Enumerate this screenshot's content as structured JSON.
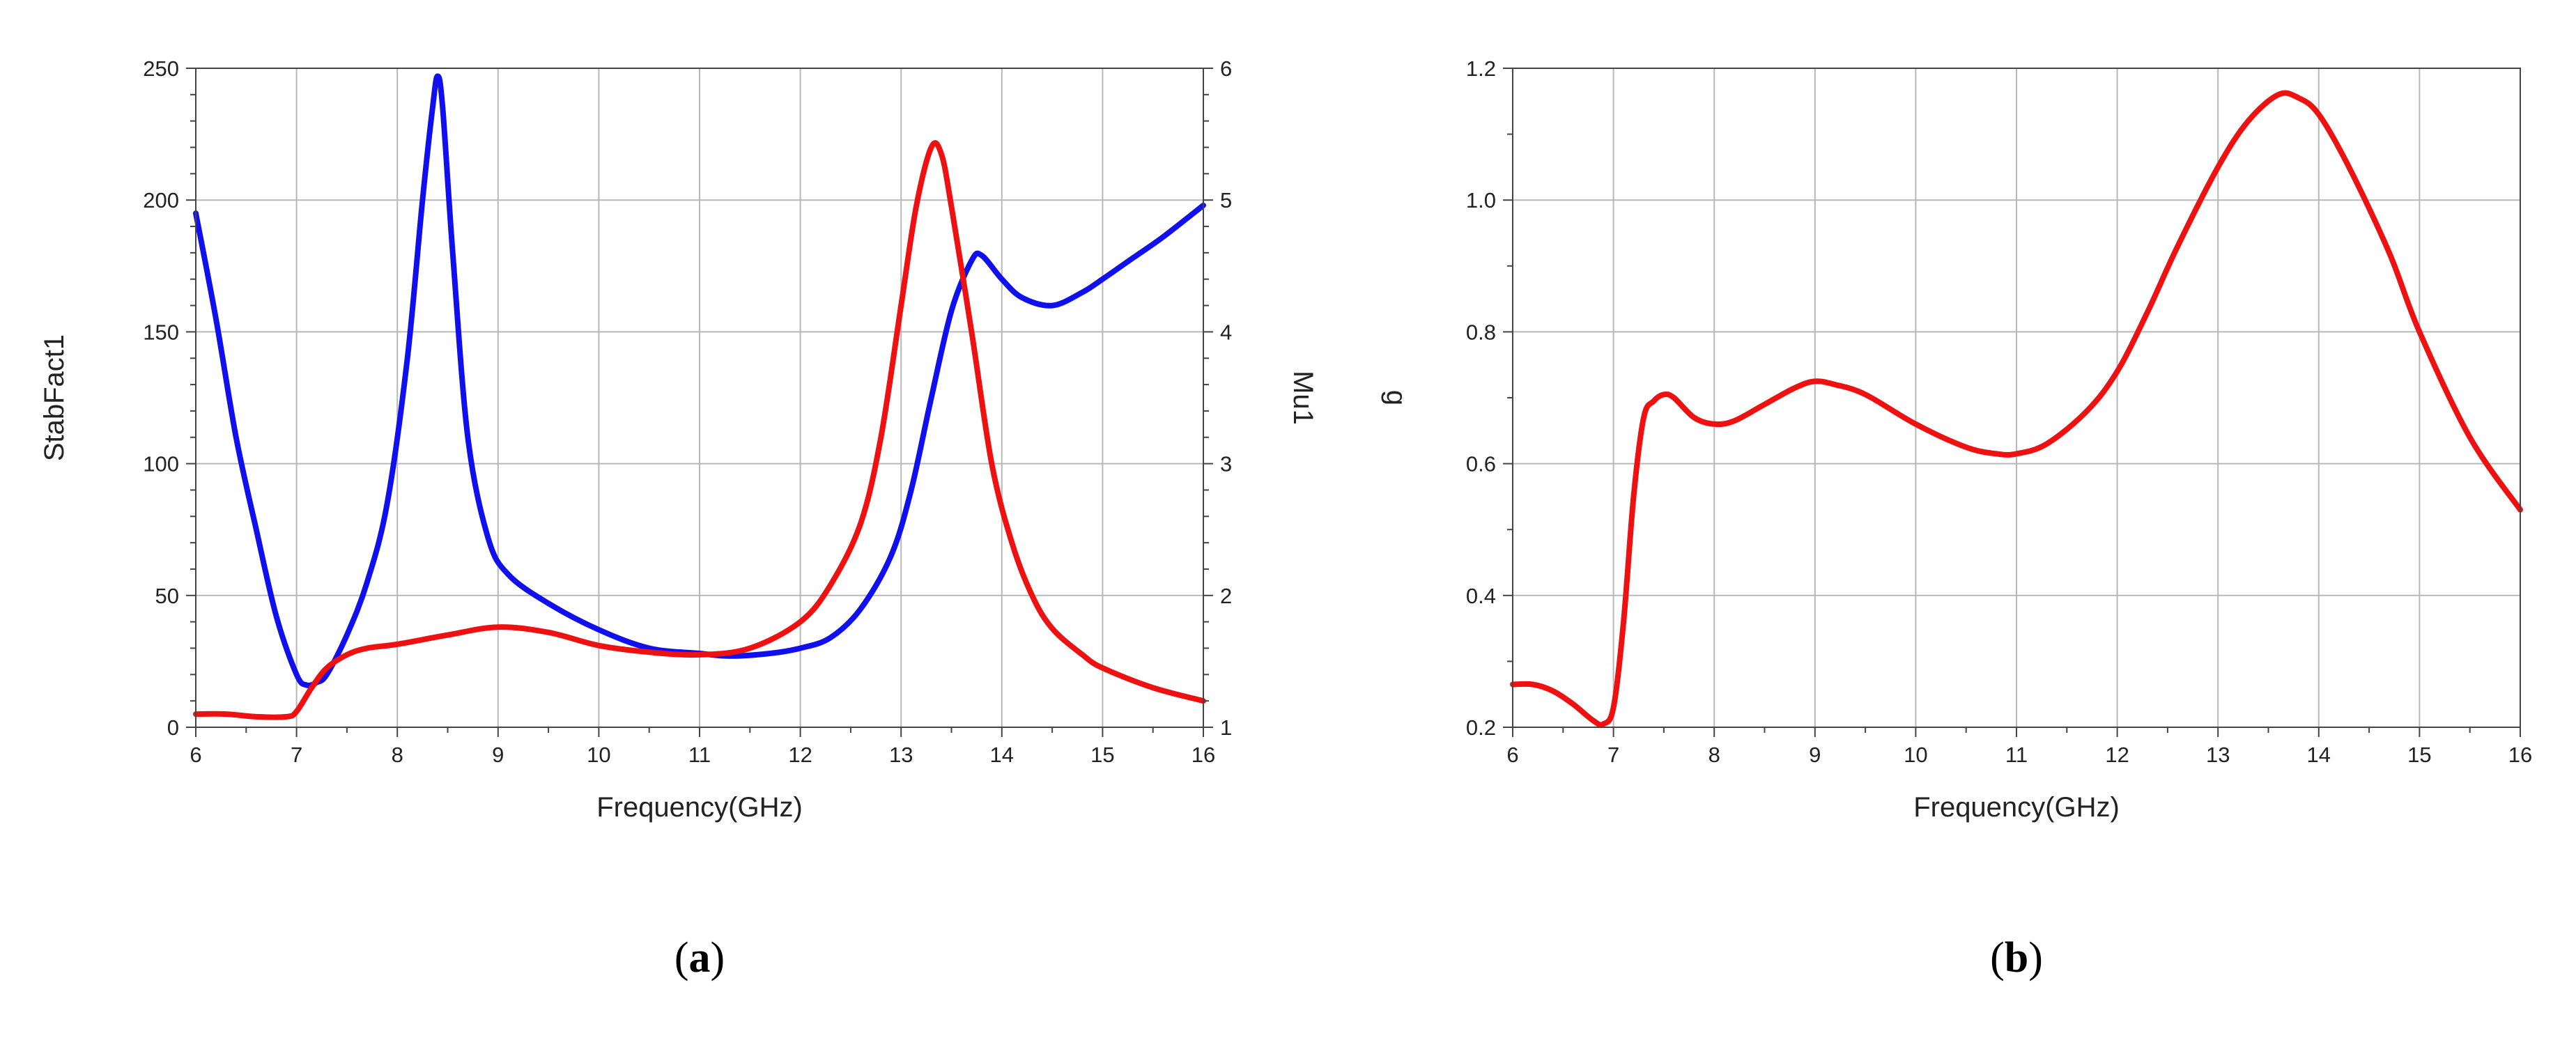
{
  "chart_data": [
    {
      "panel_label": "a",
      "type": "line",
      "xlabel": "Frequency(GHz)",
      "ylabel_left": "StabFact1",
      "ylabel_right": "Mu1",
      "xlim": [
        6,
        16
      ],
      "ylim_left": [
        0,
        250
      ],
      "ylim_right": [
        1,
        6
      ],
      "xticks": [
        6,
        7,
        8,
        9,
        10,
        11,
        12,
        13,
        14,
        15,
        16
      ],
      "yticks_left": [
        0,
        50,
        100,
        150,
        200,
        250
      ],
      "yticks_right": [
        1,
        2,
        3,
        4,
        5,
        6
      ],
      "grid": true,
      "colors": {
        "left_axis": "#1010ee",
        "right_axis": "#ee1111"
      },
      "series": [
        {
          "axis": "left",
          "color": "#1010ee",
          "x": [
            6.0,
            6.2,
            6.4,
            6.6,
            6.8,
            7.0,
            7.1,
            7.2,
            7.3,
            7.5,
            7.7,
            7.9,
            8.1,
            8.25,
            8.35,
            8.4,
            8.45,
            8.55,
            8.7,
            8.9,
            9.1,
            9.5,
            10.0,
            10.5,
            11.0,
            11.3,
            11.7,
            12.0,
            12.3,
            12.6,
            12.9,
            13.1,
            13.3,
            13.5,
            13.7,
            13.8,
            14.0,
            14.2,
            14.5,
            14.8,
            15.0,
            15.3,
            15.6,
            16.0
          ],
          "y": [
            195,
            155,
            110,
            75,
            42,
            20,
            16,
            17,
            20,
            35,
            55,
            85,
            140,
            200,
            235,
            247,
            235,
            180,
            110,
            72,
            58,
            47,
            37,
            30,
            28,
            27,
            28,
            30,
            34,
            45,
            65,
            90,
            125,
            158,
            177,
            179,
            170,
            163,
            160,
            165,
            170,
            178,
            186,
            198
          ]
        },
        {
          "axis": "right",
          "color": "#ee1111",
          "x": [
            6.0,
            6.3,
            6.6,
            6.9,
            7.0,
            7.15,
            7.3,
            7.5,
            7.7,
            8.0,
            8.5,
            9.0,
            9.5,
            10.0,
            10.5,
            11.0,
            11.5,
            12.0,
            12.3,
            12.6,
            12.8,
            13.0,
            13.15,
            13.3,
            13.4,
            13.5,
            13.7,
            13.9,
            14.1,
            14.3,
            14.5,
            14.8,
            15.0,
            15.5,
            16.0
          ],
          "y": [
            1.1,
            1.1,
            1.08,
            1.08,
            1.12,
            1.3,
            1.45,
            1.55,
            1.6,
            1.63,
            1.7,
            1.76,
            1.72,
            1.62,
            1.57,
            1.55,
            1.6,
            1.8,
            2.08,
            2.55,
            3.2,
            4.2,
            4.95,
            5.4,
            5.35,
            4.95,
            4.0,
            3.0,
            2.4,
            2.0,
            1.75,
            1.55,
            1.45,
            1.3,
            1.2
          ]
        }
      ]
    },
    {
      "panel_label": "b",
      "type": "line",
      "xlabel": "Frequency(GHz)",
      "ylabel": "g",
      "xlim": [
        6,
        16
      ],
      "ylim": [
        0.2,
        1.2
      ],
      "xticks": [
        6,
        7,
        8,
        9,
        10,
        11,
        12,
        13,
        14,
        15,
        16
      ],
      "yticks": [
        "0.2",
        "0.4",
        "0.6",
        "0.8",
        "1.0",
        "1.2"
      ],
      "grid": true,
      "colors": {
        "line": "#ee1111",
        "ylabel": "#ee1111"
      },
      "series": [
        {
          "color": "#ee1111",
          "x": [
            6.0,
            6.2,
            6.4,
            6.6,
            6.8,
            6.9,
            7.0,
            7.1,
            7.2,
            7.3,
            7.4,
            7.5,
            7.6,
            7.8,
            8.0,
            8.2,
            8.5,
            8.8,
            9.0,
            9.2,
            9.5,
            10.0,
            10.5,
            10.8,
            11.0,
            11.3,
            11.7,
            12.0,
            12.3,
            12.6,
            13.0,
            13.3,
            13.6,
            13.8,
            14.0,
            14.3,
            14.7,
            15.0,
            15.5,
            16.0
          ],
          "y": [
            0.265,
            0.265,
            0.255,
            0.235,
            0.21,
            0.205,
            0.23,
            0.36,
            0.55,
            0.67,
            0.695,
            0.705,
            0.7,
            0.67,
            0.66,
            0.665,
            0.69,
            0.715,
            0.725,
            0.72,
            0.705,
            0.66,
            0.625,
            0.615,
            0.615,
            0.63,
            0.68,
            0.74,
            0.83,
            0.93,
            1.05,
            1.12,
            1.16,
            1.155,
            1.13,
            1.05,
            0.92,
            0.8,
            0.64,
            0.53
          ]
        }
      ]
    }
  ]
}
